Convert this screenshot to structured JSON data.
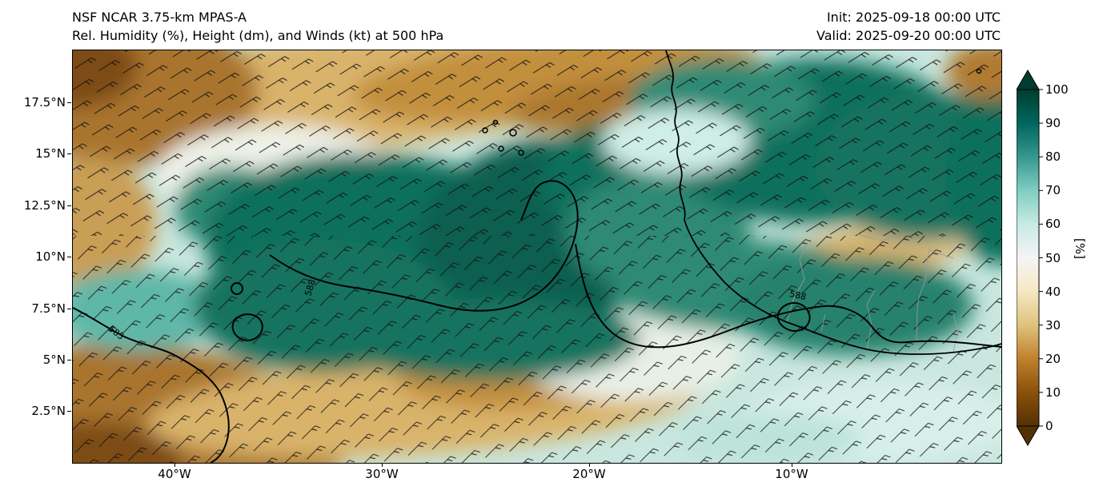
{
  "figure": {
    "title_model": "NSF NCAR 3.75-km MPAS-A",
    "title_field": "Rel. Humidity (%), Height (dm), and Winds (kt) at 500 hPa",
    "init_label": "Init: 2025-09-18 00:00 UTC",
    "valid_label": "Valid: 2025-09-20 00:00 UTC"
  },
  "chart_data": {
    "type": "heatmap",
    "model": "NSF NCAR 3.75-km MPAS-A",
    "title": "Rel. Humidity (%), Height (dm), and Winds (kt) at 500 hPa",
    "init_time": "2025-09-18 00:00 UTC",
    "valid_time": "2025-09-20 00:00 UTC",
    "field": "Relative Humidity",
    "units": "%",
    "level": "500 hPa",
    "overlays": [
      "geopotential height contours (dm)",
      "wind barbs (kt)",
      "coastlines",
      "country borders"
    ],
    "contours_dm": [
      585,
      588
    ],
    "contour_labels": [
      "585",
      "588"
    ],
    "x_ticks": [
      "40°W",
      "30°W",
      "20°W",
      "10°W"
    ],
    "y_ticks": [
      "17.5°N",
      "15°N",
      "12.5°N",
      "10°N",
      "7.5°N",
      "5°N",
      "2.5°N"
    ],
    "lon_range": "≈45°W to 0°",
    "lat_range": "≈0°N to 20°N",
    "grid": false,
    "colorbar": {
      "label": "[%]",
      "ticks": [
        "100",
        "90",
        "80",
        "70",
        "60",
        "50",
        "40",
        "30",
        "20",
        "10",
        "0"
      ],
      "range": [
        0,
        100
      ],
      "colormap": "BrBG (brown = dry, teal = moist)",
      "colors_low_to_high": [
        "#543005",
        "#8c510a",
        "#bf812d",
        "#dfc27d",
        "#f6e8c3",
        "#f5f5f5",
        "#c7eae5",
        "#80cdc1",
        "#35978f",
        "#01665e",
        "#003c30"
      ]
    },
    "field_regions": [
      {
        "x": 0.3,
        "y": 0.1,
        "rx": 0.36,
        "ry": 0.14,
        "rot": -6,
        "color": "#d9b36a",
        "rh": 30
      },
      {
        "x": 0.52,
        "y": 0.07,
        "rx": 0.22,
        "ry": 0.1,
        "rot": -5,
        "color": "#c28f3e",
        "rh": 20
      },
      {
        "x": 0.57,
        "y": 0.13,
        "rx": 0.1,
        "ry": 0.06,
        "rot": -8,
        "color": "#ab772f",
        "rh": 18
      },
      {
        "x": 0.06,
        "y": 0.1,
        "rx": 0.14,
        "ry": 0.18,
        "rot": 0,
        "color": "#a9752e",
        "rh": 15
      },
      {
        "x": 0.0,
        "y": 0.04,
        "rx": 0.07,
        "ry": 0.1,
        "rot": 0,
        "color": "#7d4c12",
        "rh": 8
      },
      {
        "x": 0.02,
        "y": 0.42,
        "rx": 0.07,
        "ry": 0.16,
        "rot": 0,
        "color": "#c99e55",
        "rh": 25
      },
      {
        "x": 0.1,
        "y": 0.9,
        "rx": 0.2,
        "ry": 0.18,
        "rot": 8,
        "color": "#a9752e",
        "rh": 15
      },
      {
        "x": 0.02,
        "y": 1.0,
        "rx": 0.1,
        "ry": 0.1,
        "rot": 0,
        "color": "#7d4c12",
        "rh": 8
      },
      {
        "x": 0.38,
        "y": 0.86,
        "rx": 0.3,
        "ry": 0.12,
        "rot": -4,
        "color": "#d9b36a",
        "rh": 30
      },
      {
        "x": 0.47,
        "y": 0.8,
        "rx": 0.12,
        "ry": 0.07,
        "rot": 0,
        "color": "#c28f3e",
        "rh": 20
      },
      {
        "x": 0.22,
        "y": 0.3,
        "rx": 0.13,
        "ry": 0.12,
        "rot": 0,
        "color": "#eef2e8",
        "rh": 50
      },
      {
        "x": 0.6,
        "y": 0.75,
        "rx": 0.12,
        "ry": 0.1,
        "rot": 0,
        "color": "#e8f0e6",
        "rh": 52
      },
      {
        "x": 0.86,
        "y": 0.49,
        "rx": 0.11,
        "ry": 0.06,
        "rot": -8,
        "color": "#d9b36a",
        "rh": 32
      },
      {
        "x": 0.93,
        "y": 0.42,
        "rx": 0.08,
        "ry": 0.05,
        "rot": 0,
        "color": "#e4d9b5",
        "rh": 40
      },
      {
        "x": 0.07,
        "y": 0.63,
        "rx": 0.09,
        "ry": 0.1,
        "rot": 0,
        "color": "#5fb7a7",
        "rh": 78
      },
      {
        "x": 0.17,
        "y": 0.38,
        "rx": 0.06,
        "ry": 0.1,
        "rot": 0,
        "color": "#2f8a74",
        "rh": 85
      },
      {
        "x": 0.36,
        "y": 0.52,
        "rx": 0.22,
        "ry": 0.26,
        "rot": 10,
        "color": "#0e6f5c",
        "rh": 92
      },
      {
        "x": 0.5,
        "y": 0.46,
        "rx": 0.13,
        "ry": 0.24,
        "rot": -15,
        "color": "#095e4f",
        "rh": 96
      },
      {
        "x": 0.27,
        "y": 0.62,
        "rx": 0.14,
        "ry": 0.16,
        "rot": 0,
        "color": "#12735f",
        "rh": 90
      },
      {
        "x": 0.45,
        "y": 0.7,
        "rx": 0.16,
        "ry": 0.1,
        "rot": 0,
        "color": "#12735f",
        "rh": 90
      },
      {
        "x": 0.57,
        "y": 0.3,
        "rx": 0.07,
        "ry": 0.12,
        "rot": -20,
        "color": "#0e6f5c",
        "rh": 92
      },
      {
        "x": 0.63,
        "y": 0.44,
        "rx": 0.1,
        "ry": 0.14,
        "rot": 0,
        "color": "#2f8a74",
        "rh": 85
      },
      {
        "x": 0.72,
        "y": 0.57,
        "rx": 0.14,
        "ry": 0.11,
        "rot": 0,
        "color": "#2f8a74",
        "rh": 85
      },
      {
        "x": 0.84,
        "y": 0.62,
        "rx": 0.13,
        "ry": 0.12,
        "rot": 0,
        "color": "#25816d",
        "rh": 87
      },
      {
        "x": 0.8,
        "y": 0.22,
        "rx": 0.17,
        "ry": 0.2,
        "rot": 0,
        "color": "#0e6f5c",
        "rh": 92
      },
      {
        "x": 0.92,
        "y": 0.28,
        "rx": 0.12,
        "ry": 0.18,
        "rot": 0,
        "color": "#12735f",
        "rh": 90
      },
      {
        "x": 0.7,
        "y": 0.12,
        "rx": 0.1,
        "ry": 0.1,
        "rot": 0,
        "color": "#2f8a74",
        "rh": 85
      },
      {
        "x": 1.0,
        "y": 0.3,
        "rx": 0.06,
        "ry": 0.22,
        "rot": 0,
        "color": "#0e6f5c",
        "rh": 92
      },
      {
        "x": 0.65,
        "y": 0.22,
        "rx": 0.08,
        "ry": 0.08,
        "rot": 0,
        "color": "#cfeee7",
        "rh": 62
      },
      {
        "x": 0.99,
        "y": 0.05,
        "rx": 0.05,
        "ry": 0.07,
        "rot": 0,
        "color": "#b07a33",
        "rh": 18
      },
      {
        "x": 0.87,
        "y": 0.9,
        "rx": 0.15,
        "ry": 0.1,
        "rot": 0,
        "color": "#d7efe9",
        "rh": 63
      },
      {
        "x": 0.75,
        "y": 0.94,
        "rx": 0.1,
        "ry": 0.06,
        "rot": 0,
        "color": "#bce3da",
        "rh": 68
      }
    ]
  }
}
